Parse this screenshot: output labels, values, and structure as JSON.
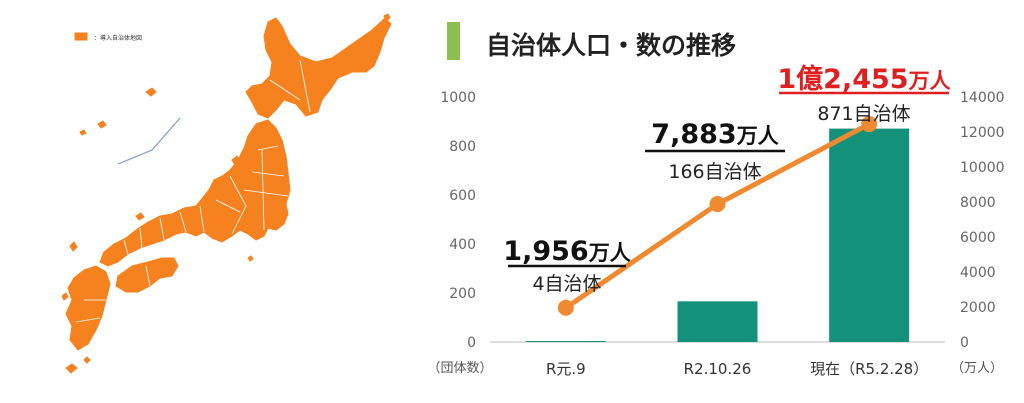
{
  "map": {
    "legend_label": "：導入自治体地図",
    "colors": {
      "fill": "#f5821f",
      "stroke": "#ffffff",
      "line": "#7f9fce"
    }
  },
  "title": {
    "text": "自治体人口・数の推移",
    "accent_color": "#8cbf4f"
  },
  "chart_data": {
    "type": "bar+line",
    "categories": [
      "R元.9",
      "R2.10.26",
      "現在（R5.2.28）"
    ],
    "bars": {
      "values": [
        4,
        166,
        871
      ],
      "axis": "left",
      "color": "#13917a"
    },
    "line": {
      "values": [
        1956,
        7883,
        12455
      ],
      "axis": "right",
      "color": "#f08a30"
    },
    "left_axis": {
      "label": "（団体数）",
      "ylim": [
        0,
        1000
      ],
      "ticks": [
        0,
        200,
        400,
        600,
        800,
        1000
      ]
    },
    "right_axis": {
      "label": "（万人）",
      "ylim": [
        0,
        14000
      ],
      "ticks": [
        0,
        2000,
        4000,
        6000,
        8000,
        10000,
        12000,
        14000
      ]
    },
    "annotations": [
      {
        "population": "1,956",
        "unit": "万人",
        "count": "4自治体"
      },
      {
        "population": "7,883",
        "unit": "万人",
        "count": "166自治体"
      },
      {
        "population": "1億2,455",
        "unit": "万人",
        "count": "871自治体",
        "highlight_color": "#e02020"
      }
    ],
    "grid": false
  }
}
